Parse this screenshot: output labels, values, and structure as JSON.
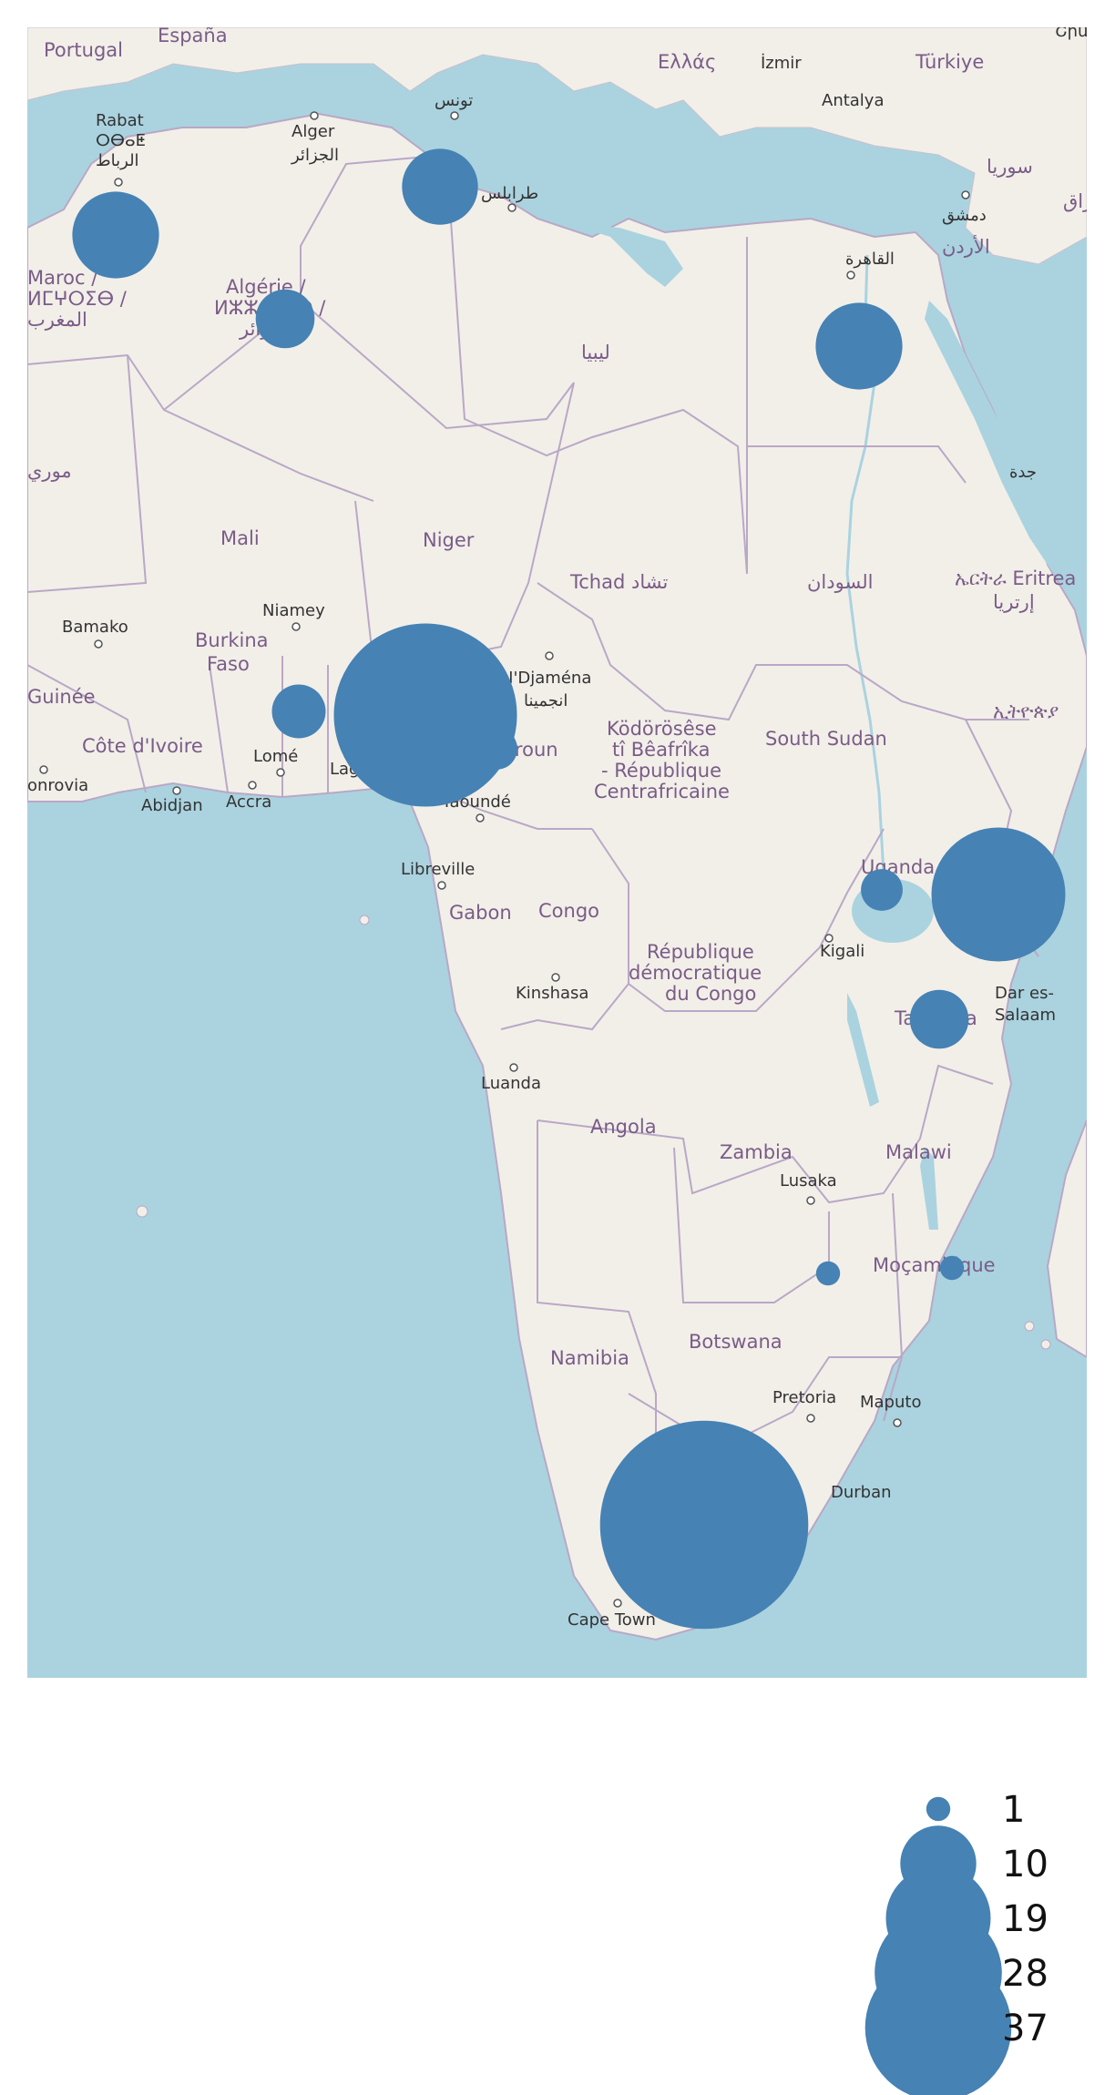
{
  "map": {
    "bubble_color": "#4682b4",
    "land_color": "#f2efe9",
    "water_color": "#aad3df",
    "border_color": "#b9a8c6",
    "bubbles": [
      {
        "name": "morocco",
        "value": 13
      },
      {
        "name": "algeria",
        "value": 6
      },
      {
        "name": "tunisia",
        "value": 10
      },
      {
        "name": "egypt",
        "value": 13
      },
      {
        "name": "ghana",
        "value": 5
      },
      {
        "name": "nigeria",
        "value": 58
      },
      {
        "name": "cameroon",
        "value": 3
      },
      {
        "name": "uganda",
        "value": 3
      },
      {
        "name": "kenya",
        "value": 31
      },
      {
        "name": "tanzania",
        "value": 6
      },
      {
        "name": "zimbabwe",
        "value": 1
      },
      {
        "name": "mozambique",
        "value": 1
      },
      {
        "name": "south-africa",
        "value": 75
      }
    ],
    "labels": {
      "portugal": "Portugal",
      "espana": "España",
      "hellas": "Ελλάς",
      "izmir": "İzmir",
      "turkiye": "Türkiye",
      "antalya": "Antalya",
      "tunis": "تونس",
      "alger": "Alger",
      "alger_ar": "الجزائر",
      "rabat": "Rabat",
      "rabat_tfng": "ⵔⴱⴰⵟ",
      "rabat_ar": "الرباط",
      "tarabulus": "طرابلس",
      "suriya": "سوريا",
      "dimashq": "دمشق",
      "urdun": "الأردن",
      "iraq": "عراق",
      "qahira": "القاهرة",
      "maroc": "Maroc /",
      "maroc_tfng": "ⵍⵎⵖⵔⵉⴱ /",
      "maroc_ar": "المغرب",
      "algerie": "Algérie /",
      "algerie_tfng": "ⵍⵣⵣⴰⵢⴻⵔ /",
      "algerie_ar": "الجزائر",
      "libya": "ليبيا",
      "mauritania": "موري",
      "jeddah": "جدة",
      "mali": "Mali",
      "niger": "Niger",
      "tchad": "Tchad تشاد",
      "sudan": "السودان",
      "eritrea": "ኤርትራ Eritrea",
      "eritrea_ar": "إرتريا",
      "ethiopia": "ኢትዮጵያ",
      "bamako": "Bamako",
      "niamey": "Niamey",
      "burkina": "Burkina",
      "faso": "Faso",
      "ndjamena": "N'Djaména",
      "ndjamena_ar": "انجمينا",
      "guinee": "Guinée",
      "cote_divoire": "Côte d'Ivoire",
      "lome": "Lomé",
      "lagos": "Lag",
      "cameroun": "eroun",
      "yaounde": "Yaoundé",
      "monrovia": "onrovia",
      "abidjan": "Abidjan",
      "accra": "Accra",
      "car1": "Ködörösêse",
      "car2": "tî Bêafrîka",
      "car3": "- République",
      "car4": "Centrafricaine",
      "south_sudan": "South Sudan",
      "libreville": "Libreville",
      "gabon": "Gabon",
      "congo": "Congo",
      "uganda": "Uganda",
      "kigali": "Kigali",
      "rdc1": "République",
      "rdc2": "démocratique",
      "rdc3": "du Congo",
      "kinshasa": "Kinshasa",
      "tanzania": "Ta",
      "tanzania2": "ia",
      "dar1": "Dar es-",
      "dar2": "Salaam",
      "luanda": "Luanda",
      "angola": "Angola",
      "zambia": "Zambia",
      "lusaka": "Lusaka",
      "malawi": "Malawi",
      "mocambique": "Moçambique",
      "namibia": "Namibia",
      "botswana": "Botswana",
      "pretoria": "Pretoria",
      "maputo": "Maputo",
      "durban": "Durban",
      "cape_town": "Cape Town",
      "top_right": "Շրև"
    }
  },
  "legend": {
    "entries": [
      {
        "label": "1",
        "value": 1
      },
      {
        "label": "10",
        "value": 10
      },
      {
        "label": "19",
        "value": 19
      },
      {
        "label": "28",
        "value": 28
      },
      {
        "label": "37",
        "value": 37
      }
    ]
  }
}
